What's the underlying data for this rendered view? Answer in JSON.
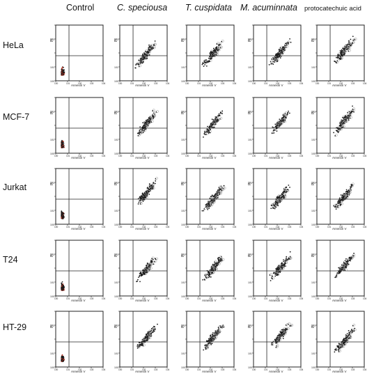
{
  "columns": [
    "Control",
    "C. speciousa",
    "T. cuspidata",
    "M. acuminnata",
    "protocatechuic acid"
  ],
  "rows": [
    "HeLa",
    "MCF-7",
    "Jurkat",
    "T24",
    "HT-29"
  ],
  "plot": {
    "xlabel": "Annexin V",
    "ylabel": "PI",
    "x_ticks": [
      "10^0",
      "10^1",
      "10^2",
      "10^3",
      "10^4"
    ],
    "y_ticks": [
      "10^0",
      "10^1",
      "10^2",
      "10^3",
      "10^4"
    ]
  },
  "colors": {
    "dots": "#1a1a1a",
    "control_dots": "#b03020",
    "density": "#9a9a9a"
  },
  "chart_data": {
    "type": "scatter",
    "xlabel": "Annexin V",
    "ylabel": "PI",
    "x_scale": "log",
    "y_scale": "log",
    "xlim": [
      1,
      10000
    ],
    "ylim": [
      1,
      10000
    ],
    "panels_description": "5 x 5 grid of flow cytometry dot plots; quadrant gates divide each panel"
  }
}
